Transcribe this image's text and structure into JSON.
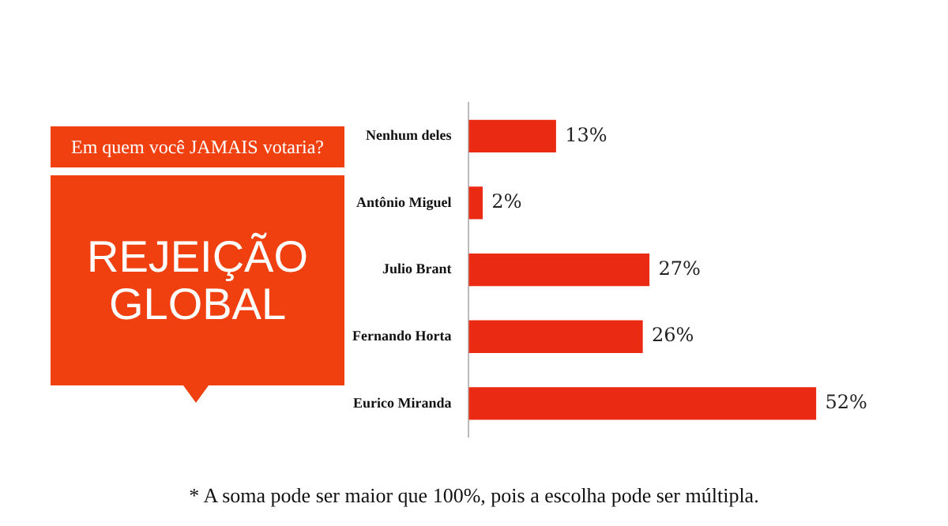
{
  "chart_data": {
    "type": "bar",
    "orientation": "horizontal",
    "title": "REJEIÇÃO GLOBAL",
    "subtitle": "Em quem você JAMAIS votaria?",
    "categories": [
      "Nenhum deles",
      "Antônio Miguel",
      "Julio Brant",
      "Fernando Horta",
      "Eurico Miranda"
    ],
    "values": [
      13,
      2,
      27,
      26,
      52
    ],
    "color": "#ea2a12",
    "value_labels": [
      "13%",
      "2%",
      "27%",
      "26%",
      "52%"
    ],
    "legend": false,
    "tick_labels": "y",
    "annotations": [
      "* A soma pode ser maior que 100%, pois a escolha pode ser múltipla."
    ]
  }
}
